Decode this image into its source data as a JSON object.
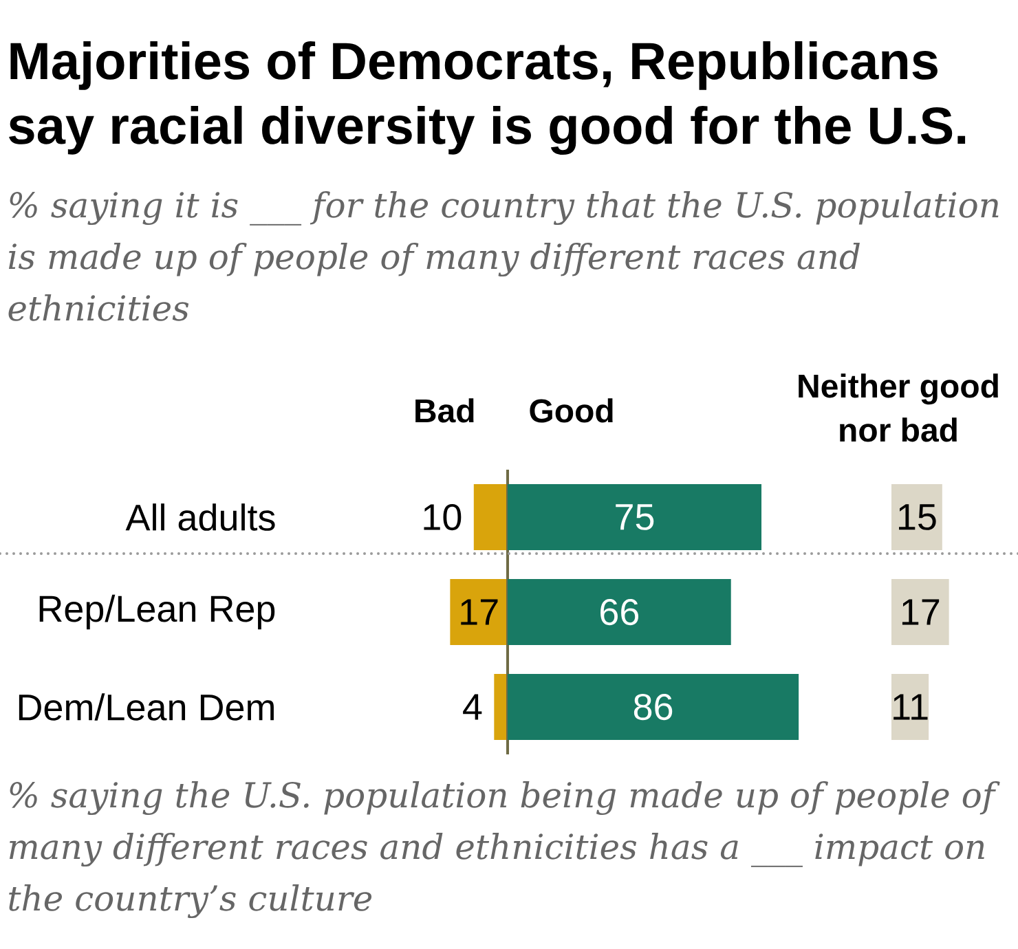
{
  "chart_data": [
    {
      "type": "bar",
      "orientation": "horizontal",
      "title": "Majorities of Democrats, Republicans say racial diversity is good for the U.S.",
      "subtitle": "% saying it is ___ for the country that the U.S. population is made up of people of many different races and ethnicities",
      "categories": [
        "All adults",
        "Rep/Lean Rep",
        "Dem/Lean Dem"
      ],
      "series": [
        {
          "name": "Bad",
          "color": "#d9a40c",
          "values": [
            10,
            17,
            4
          ]
        }
      ],
      "xlim": [
        17,
        0
      ],
      "data_labels": true,
      "tick_labels": "y",
      "annotations": [
        "% saying the U.S. population being made up of people of many different races and ethnicities has a ___ impact on the country’s culture"
      ]
    },
    {
      "type": "bar",
      "orientation": "horizontal",
      "categories": [
        null,
        null,
        null
      ],
      "series": [
        {
          "name": "Good",
          "color": "#187a64",
          "values": [
            75,
            66,
            86
          ]
        }
      ],
      "data_labels": true,
      "tick_labels": false
    },
    {
      "type": "bar",
      "orientation": "horizontal",
      "categories": [
        null,
        null,
        null
      ],
      "series": [
        {
          "name": "Neither good nor bad",
          "color": "#dcd7c7",
          "values": [
            15,
            17,
            11
          ]
        }
      ],
      "data_labels": true,
      "tick_labels": false
    }
  ]
}
